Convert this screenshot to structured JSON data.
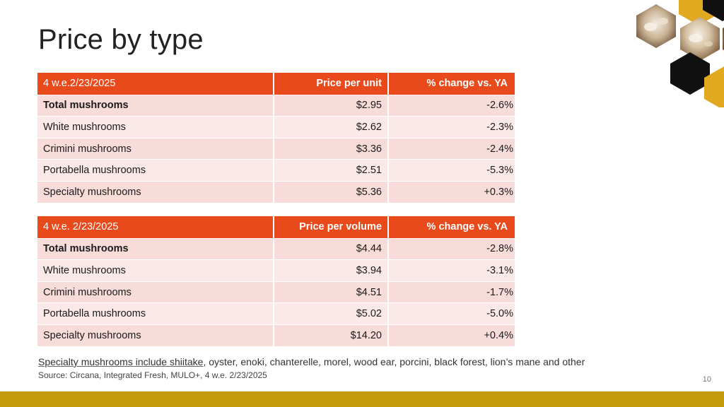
{
  "title": "Price by type",
  "table1": {
    "headers": [
      "4 w.e.2/23/2025",
      "Price per unit",
      "% change vs. YA"
    ],
    "rows": [
      {
        "label": "Total mushrooms",
        "value": "$2.95",
        "change": "-2.6%"
      },
      {
        "label": "White mushrooms",
        "value": "$2.62",
        "change": "-2.3%"
      },
      {
        "label": "Crimini mushrooms",
        "value": "$3.36",
        "change": "-2.4%"
      },
      {
        "label": "Portabella mushrooms",
        "value": "$2.51",
        "change": "-5.3%"
      },
      {
        "label": "Specialty mushrooms",
        "value": "$5.36",
        "change": "+0.3%"
      }
    ]
  },
  "table2": {
    "headers": [
      "4 w.e. 2/23/2025",
      "Price per volume",
      "% change vs. YA"
    ],
    "rows": [
      {
        "label": "Total mushrooms",
        "value": "$4.44",
        "change": "-2.8%"
      },
      {
        "label": "White mushrooms",
        "value": "$3.94",
        "change": "-3.1%"
      },
      {
        "label": "Crimini mushrooms",
        "value": "$4.51",
        "change": "-1.7%"
      },
      {
        "label": "Portabella mushrooms",
        "value": "$5.02",
        "change": "-5.0%"
      },
      {
        "label": "Specialty mushrooms",
        "value": "$14.20",
        "change": "+0.4%"
      }
    ]
  },
  "footnote": {
    "linked": "Specialty mushrooms include shiitake",
    "rest": ", oyster, enoki, chanterelle, morel, wood ear, porcini, black forest, lion’s mane and other"
  },
  "source": "Source: Circana, Integrated Fresh, MULO+, 4 w.e. 2/23/2025",
  "page_number": "10",
  "colors": {
    "header_bg": "#e84a1c",
    "row_odd": "#f8dcda",
    "row_even": "#fbe9e8",
    "bottom_bar": "#c49a0d",
    "hex_gold": "#e0a920",
    "hex_dark": "#111111"
  },
  "decoration": "mushroom-hexagon-photo-collage"
}
